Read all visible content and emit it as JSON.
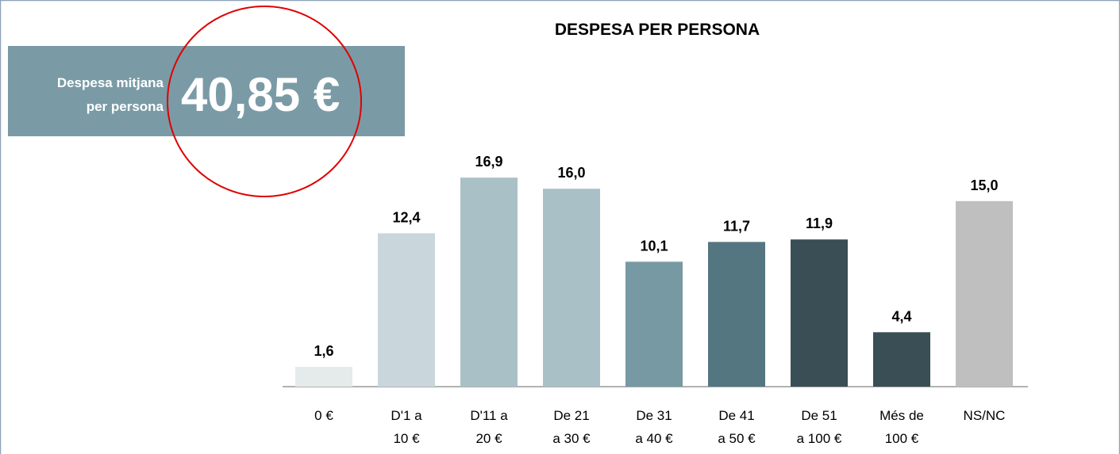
{
  "chart_data": {
    "type": "bar",
    "title": "DESPESA PER PERSONA",
    "categories": [
      "0 €",
      "D'1 a\n10 €",
      "D'11 a\n20 €",
      "De 21\na 30 €",
      "De 31\na 40 €",
      "De 41\na 50 €",
      "De 51\na 100 €",
      "Més de\n100 €",
      "NS/NC"
    ],
    "values": [
      1.6,
      12.4,
      16.9,
      16.0,
      10.1,
      11.7,
      11.9,
      4.4,
      15.0
    ],
    "value_labels": [
      "1,6",
      "12,4",
      "16,9",
      "16,0",
      "10,1",
      "11,7",
      "11,9",
      "4,4",
      "15,0"
    ],
    "colors": [
      "#e5eaeb",
      "#c9d7dc",
      "#a9c0c6",
      "#a9c0c6",
      "#7799a3",
      "#537680",
      "#394e55",
      "#394e55",
      "#bfbfbf"
    ],
    "ylim": [
      0,
      18
    ],
    "annotation": {
      "label": [
        "Despesa mitjana",
        "per persona"
      ],
      "value": "40,85 €"
    }
  }
}
